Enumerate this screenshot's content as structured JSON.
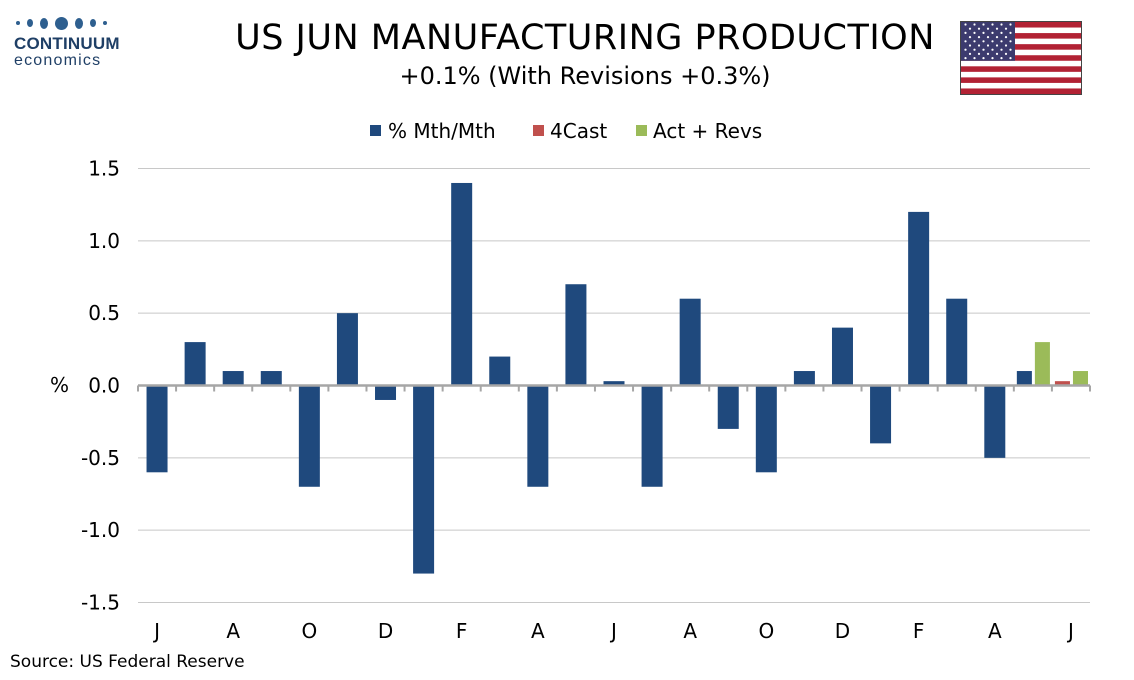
{
  "logo": {
    "name": "CONTINUUM",
    "sub": "economics"
  },
  "title": "US JUN MANUFACTURING PRODUCTION",
  "subtitle": "+0.1% (With Revisions +0.3%)",
  "source": "Source: US Federal Reserve",
  "flag_icon": "us-flag-icon",
  "colors": {
    "mth": "#1f497d",
    "fcast": "#c0504d",
    "rev": "#9bbb59",
    "grid": "#c8c8c8"
  },
  "chart_data": {
    "type": "bar",
    "title": "US JUN MANUFACTURING PRODUCTION",
    "subtitle": "+0.1% (With Revisions +0.3%)",
    "ylabel": "%",
    "ylim": [
      -1.5,
      1.5
    ],
    "yticks": [
      "1.5",
      "1.0",
      "0.5",
      "0.0",
      "-0.5",
      "-1.0",
      "-1.5"
    ],
    "ytick_values": [
      1.5,
      1.0,
      0.5,
      0.0,
      -0.5,
      -1.0,
      -1.5
    ],
    "grid": true,
    "legend_position": "top-center",
    "legend": [
      "% Mth/Mth",
      "4Cast",
      "Act + Revs"
    ],
    "xtick_labels": [
      "J",
      "A",
      "O",
      "D",
      "F",
      "A",
      "J",
      "A",
      "O",
      "D",
      "F",
      "A",
      "J"
    ],
    "series": [
      {
        "name": "% Mth/Mth",
        "values": [
          -0.6,
          0.3,
          0.1,
          0.1,
          -0.7,
          0.5,
          -0.1,
          -1.3,
          1.4,
          0.2,
          -0.7,
          0.7,
          0.03,
          -0.7,
          0.6,
          -0.3,
          -0.6,
          0.1,
          0.4,
          -0.4,
          1.2,
          0.6,
          -0.5,
          0.1,
          0
        ]
      },
      {
        "name": "4Cast",
        "values": [
          null,
          null,
          null,
          null,
          null,
          null,
          null,
          null,
          null,
          null,
          null,
          null,
          null,
          null,
          null,
          null,
          null,
          null,
          null,
          null,
          null,
          null,
          null,
          null,
          0.03
        ]
      },
      {
        "name": "Act + Revs",
        "values": [
          null,
          null,
          null,
          null,
          null,
          null,
          null,
          null,
          null,
          null,
          null,
          null,
          null,
          null,
          null,
          null,
          null,
          null,
          null,
          null,
          null,
          null,
          null,
          0.3,
          0.1
        ]
      }
    ]
  }
}
